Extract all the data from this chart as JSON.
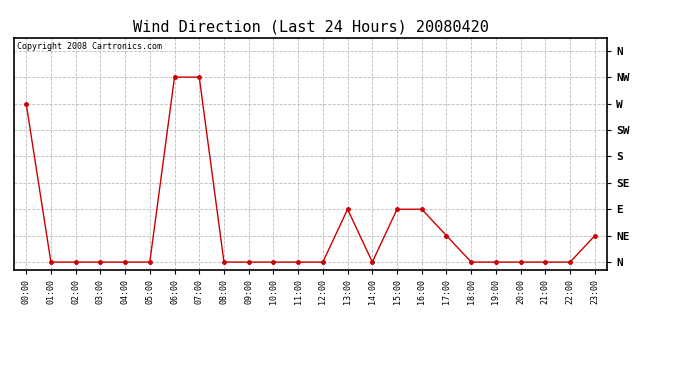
{
  "title": "Wind Direction (Last 24 Hours) 20080420",
  "copyright_text": "Copyright 2008 Cartronics.com",
  "x_labels": [
    "00:00",
    "01:00",
    "02:00",
    "03:00",
    "04:00",
    "05:00",
    "06:00",
    "07:00",
    "08:00",
    "09:00",
    "10:00",
    "11:00",
    "12:00",
    "13:00",
    "14:00",
    "15:00",
    "16:00",
    "17:00",
    "18:00",
    "19:00",
    "20:00",
    "21:00",
    "22:00",
    "23:00"
  ],
  "y_tick_labels": [
    "N",
    "NE",
    "E",
    "SE",
    "S",
    "SW",
    "W",
    "NW",
    "N"
  ],
  "y_tick_values": [
    0,
    1,
    2,
    3,
    4,
    5,
    6,
    7,
    8
  ],
  "wind_data": [
    6,
    0,
    0,
    0,
    0,
    0,
    7,
    7,
    0,
    0,
    0,
    0,
    0,
    2,
    0,
    2,
    2,
    1,
    0,
    0,
    0,
    0,
    0,
    1
  ],
  "line_color": "#cc0000",
  "marker": "o",
  "marker_size": 2.5,
  "bg_color": "#ffffff",
  "grid_color": "#bbbbbb",
  "title_fontsize": 11,
  "ylim": [
    -0.3,
    8.5
  ]
}
